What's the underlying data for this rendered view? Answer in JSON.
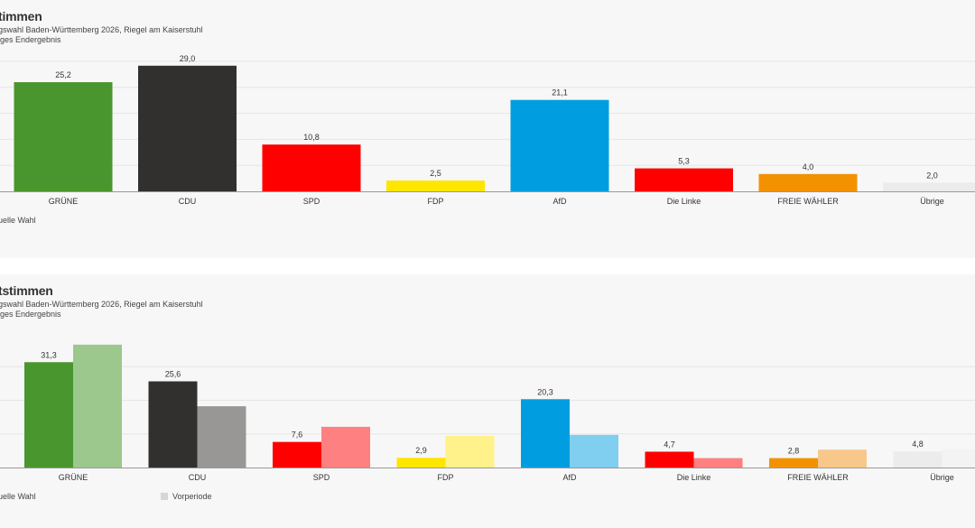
{
  "panels": [
    {
      "title": "timmen",
      "subtitle_line1": "gswahl Baden-Württemberg 2026, Riegel am Kaiserstuhl",
      "subtitle_line2": "iges Endergebnis",
      "legend_current": "uelle Wahl"
    },
    {
      "title": "tstimmen",
      "subtitle_line1": "gswahl Baden-Württemberg 2026, Riegel am Kaiserstuhl",
      "subtitle_line2": "iges Endergebnis",
      "legend_current": "uelle Wahl",
      "legend_previous": "Vorperiode"
    }
  ],
  "chart_data": [
    {
      "type": "bar",
      "categories": [
        "GRÜNE",
        "CDU",
        "SPD",
        "FDP",
        "AfD",
        "Die Linke",
        "FREIE WÄHLER",
        "Übrige"
      ],
      "series": [
        {
          "values": [
            25.2,
            29.0,
            10.8,
            2.5,
            21.1,
            5.3,
            4.0,
            2.0
          ]
        }
      ],
      "value_labels": [
        "25,2",
        "29,0",
        "10,8",
        "2,5",
        "21,1",
        "5,3",
        "4,0",
        "2,0"
      ],
      "colors": [
        "#4a962e",
        "#32302e",
        "#ff0000",
        "#ffe600",
        "#009ee0",
        "#ff0000",
        "#f39200",
        "#ececec"
      ],
      "ylim": [
        0,
        30
      ],
      "grid": true,
      "legend": "bottom-left"
    },
    {
      "type": "bar",
      "categories": [
        "GRÜNE",
        "CDU",
        "SPD",
        "FDP",
        "AfD",
        "Die Linke",
        "FREIE WÄHLER",
        "Übrige"
      ],
      "series": [
        {
          "values": [
            31.3,
            25.6,
            7.6,
            2.9,
            20.3,
            4.7,
            2.8,
            4.8
          ]
        },
        {
          "name": "Vorperiode",
          "values": [
            36.5,
            18.2,
            12.1,
            9.4,
            9.7,
            2.8,
            5.3,
            5.4
          ]
        }
      ],
      "value_labels": [
        "31,3",
        "25,6",
        "7,6",
        "2,9",
        "20,3",
        "4,7",
        "2,8",
        "4,8"
      ],
      "colors": [
        "#4a962e",
        "#32302e",
        "#ff0000",
        "#ffe600",
        "#009ee0",
        "#ff0000",
        "#f39200",
        "#ececec"
      ],
      "previous_colors": [
        "#9dc88d",
        "#989796",
        "#ff8080",
        "#fff28a",
        "#80cef0",
        "#ff8080",
        "#f8c88b",
        "#f3f3f3"
      ],
      "ylim": [
        0,
        37
      ],
      "grid": true,
      "legend": "bottom-left"
    }
  ]
}
